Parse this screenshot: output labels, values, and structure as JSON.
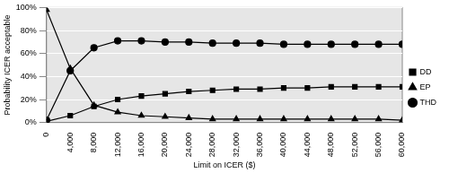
{
  "chart_data": {
    "type": "line",
    "x_label": "Limit on ICER ($)",
    "y_label": "Probability ICER acceptable",
    "x": [
      0,
      4000,
      8000,
      12000,
      16000,
      20000,
      24000,
      28000,
      32000,
      36000,
      40000,
      44000,
      48000,
      52000,
      56000,
      60000
    ],
    "series": [
      {
        "name": "DD",
        "color": "#000000",
        "marker": "square",
        "values": [
          1,
          6,
          14,
          20,
          23,
          25,
          27,
          28,
          29,
          29,
          30,
          30,
          31,
          31,
          31,
          31
        ]
      },
      {
        "name": "EP",
        "color": "#000000",
        "marker": "triangle",
        "values": [
          98,
          47,
          15,
          9,
          6,
          5,
          4,
          3,
          3,
          3,
          3,
          3,
          3,
          3,
          3,
          2
        ]
      },
      {
        "name": "THD",
        "color": "#000000",
        "marker": "circle",
        "values": [
          2,
          45,
          65,
          71,
          71,
          70,
          70,
          69,
          69,
          69,
          68,
          68,
          68,
          68,
          68,
          68
        ]
      }
    ],
    "xlim": [
      0,
      60000
    ],
    "xticks": [
      0,
      {
        "value": 4000,
        "label": "4,000"
      },
      {
        "value": 8000,
        "label": "8,000"
      },
      {
        "value": 12000,
        "label": "12,000"
      },
      {
        "value": 16000,
        "label": "16,000"
      },
      {
        "value": 20000,
        "label": "20,000"
      },
      {
        "value": 24000,
        "label": "24,000"
      },
      {
        "value": 28000,
        "label": "28,000"
      },
      {
        "value": 32000,
        "label": "32,000"
      },
      {
        "value": 36000,
        "label": "36,000"
      },
      {
        "value": 40000,
        "label": "40,000"
      },
      {
        "value": 44000,
        "label": "44,000"
      },
      {
        "value": 48000,
        "label": "48,000"
      },
      {
        "value": 52000,
        "label": "52,000"
      },
      {
        "value": 56000,
        "label": "56,000"
      },
      {
        "value": 60000,
        "label": "60,000"
      }
    ],
    "ylim": [
      0,
      100
    ],
    "yticks": [
      {
        "value": 0,
        "label": "0%"
      },
      {
        "value": 20,
        "label": "20%"
      },
      {
        "value": 40,
        "label": "40%"
      },
      {
        "value": 60,
        "label": "60%"
      },
      {
        "value": 80,
        "label": "80%"
      },
      {
        "value": 100,
        "label": "100%"
      }
    ],
    "grid": true,
    "legend": "right"
  }
}
